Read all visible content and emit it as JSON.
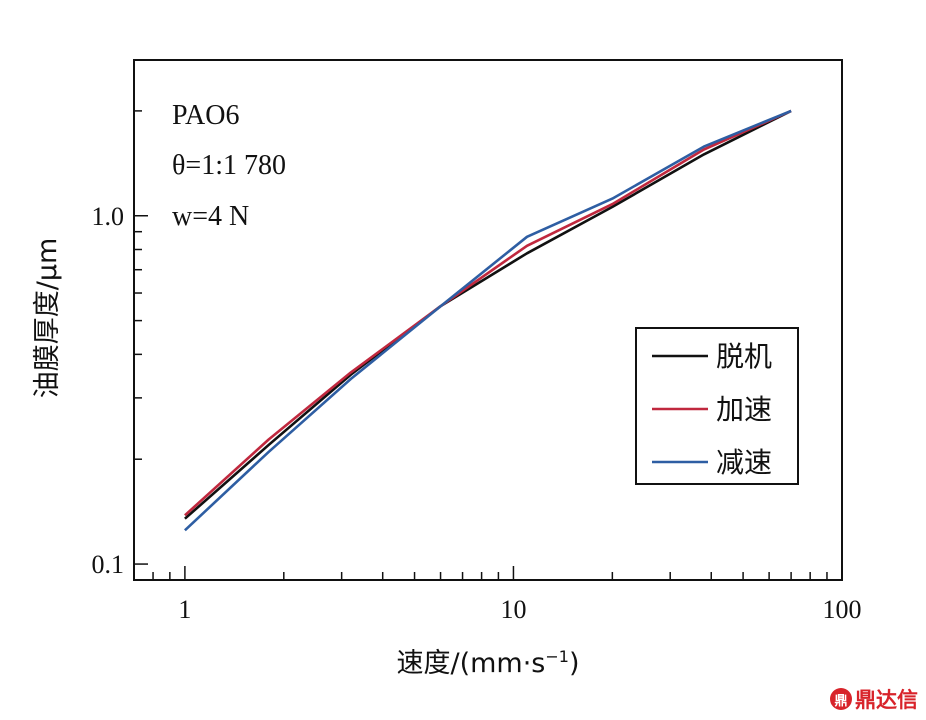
{
  "chart_data": {
    "type": "line",
    "xscale": "log",
    "yscale": "log",
    "xlim": [
      0.7,
      100
    ],
    "ylim": [
      0.09,
      2.8
    ],
    "xlabel": "速度/(mm·s",
    "xlabel_sup": "−1",
    "xlabel_close": ")",
    "ylabel": "油膜厚度/μm",
    "xticks": [
      {
        "value": 1,
        "label": "1"
      },
      {
        "value": 10,
        "label": "10"
      },
      {
        "value": 100,
        "label": "100"
      }
    ],
    "yticks": [
      {
        "value": 0.1,
        "label": "0.1"
      },
      {
        "value": 1.0,
        "label": "1.0"
      }
    ],
    "annotations": [
      "PAO6",
      "θ=1:1 780",
      "w=4 N"
    ],
    "legend_position": "right",
    "grid": false,
    "series": [
      {
        "name": "脱机",
        "color": "#111111",
        "x": [
          1,
          1.8,
          3.2,
          6,
          11,
          20,
          38,
          70
        ],
        "y": [
          0.135,
          0.22,
          0.35,
          0.55,
          0.78,
          1.06,
          1.5,
          2.0
        ]
      },
      {
        "name": "加速",
        "color": "#c0283e",
        "x": [
          1,
          1.8,
          3.2,
          6,
          11,
          20,
          38,
          70
        ],
        "y": [
          0.138,
          0.228,
          0.355,
          0.55,
          0.82,
          1.08,
          1.55,
          2.0
        ]
      },
      {
        "name": "减速",
        "color": "#2e5ea3",
        "x": [
          1,
          1.8,
          3.2,
          6,
          11,
          20,
          38,
          70
        ],
        "y": [
          0.125,
          0.21,
          0.34,
          0.55,
          0.87,
          1.12,
          1.58,
          2.0
        ]
      }
    ]
  },
  "watermark": {
    "text": "鼎达信",
    "icon_text": "鼎"
  }
}
